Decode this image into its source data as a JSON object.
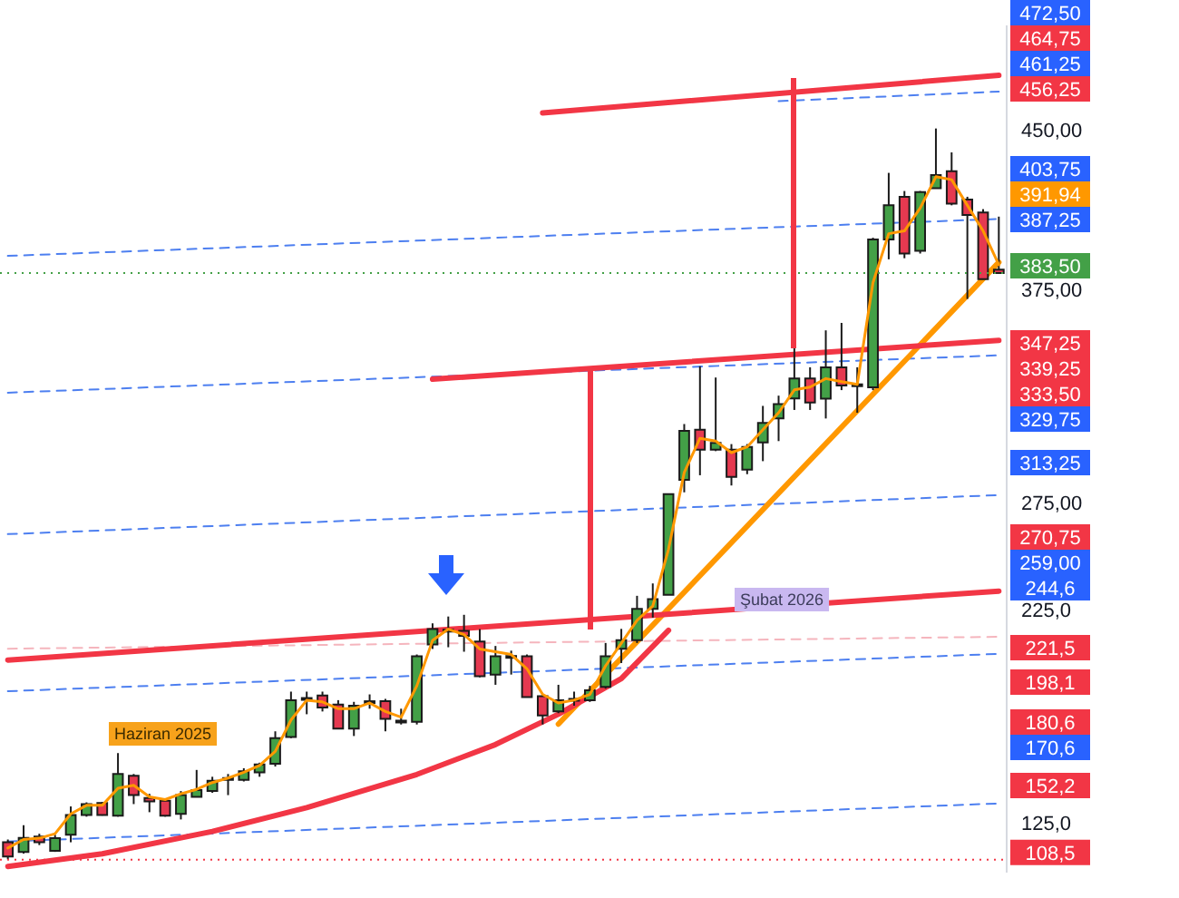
{
  "chart_data": {
    "type": "candlestick",
    "categories": [
      null,
      null,
      null,
      null,
      null,
      null,
      null,
      null,
      null,
      null,
      null,
      null,
      null,
      null,
      null,
      null,
      null,
      null,
      null,
      null,
      null,
      null,
      null,
      null,
      null,
      null,
      null,
      null,
      null,
      null,
      null,
      null,
      null,
      null,
      null,
      null,
      null,
      null,
      null,
      null,
      null,
      null,
      null,
      null,
      null,
      null,
      null,
      null,
      null,
      null,
      null,
      null,
      null,
      null,
      null,
      null,
      null,
      null,
      null,
      null,
      null,
      null,
      null,
      null
    ],
    "tick_labels": "y",
    "ohlc": [
      [
        116.7,
        118.0,
        108.7,
        110.0
      ],
      [
        112.2,
        124.7,
        111.4,
        118.8
      ],
      [
        119.4,
        120.7,
        115.4,
        116.7
      ],
      [
        112.7,
        120.2,
        112.2,
        118.6
      ],
      [
        120.2,
        133.5,
        116.7,
        129.5
      ],
      [
        129.5,
        135.4,
        128.7,
        134.6
      ],
      [
        135.1,
        135.6,
        129.2,
        129.5
      ],
      [
        129.2,
        158.5,
        128.7,
        148.7
      ],
      [
        147.9,
        148.7,
        134.6,
        138.8
      ],
      [
        137.5,
        139.4,
        130.8,
        135.9
      ],
      [
        136.2,
        136.7,
        128.7,
        129.2
      ],
      [
        130.0,
        140.7,
        127.4,
        138.8
      ],
      [
        138.0,
        150.6,
        138.0,
        141.2
      ],
      [
        140.7,
        147.4,
        139.9,
        145.5
      ],
      [
        146.6,
        148.7,
        138.8,
        146.8
      ],
      [
        146.0,
        151.4,
        145.2,
        150.0
      ],
      [
        149.5,
        154.0,
        147.4,
        153.2
      ],
      [
        153.5,
        168.7,
        152.2,
        165.5
      ],
      [
        166.0,
        187.3,
        165.5,
        183.3
      ],
      [
        184.1,
        187.3,
        176.7,
        184.3
      ],
      [
        185.5,
        187.3,
        178.0,
        179.9
      ],
      [
        181.2,
        183.3,
        170.0,
        170.0
      ],
      [
        170.0,
        182.5,
        166.5,
        180.7
      ],
      [
        182.8,
        186.0,
        179.3,
        182.6
      ],
      [
        182.8,
        183.9,
        168.7,
        174.5
      ],
      [
        173.7,
        179.3,
        171.9,
        173.5
      ],
      [
        173.2,
        204.7,
        171.9,
        203.9
      ],
      [
        209.4,
        219.3,
        207.3,
        216.6
      ],
      [
        216.3,
        222.5,
        208.1,
        216.0
      ],
      [
        215.8,
        223.3,
        206.0,
        213.4
      ],
      [
        210.8,
        216.6,
        194.0,
        194.5
      ],
      [
        195.3,
        208.7,
        190.5,
        203.9
      ],
      [
        204.0,
        206.5,
        195.3,
        203.8
      ],
      [
        203.9,
        204.7,
        184.7,
        184.7
      ],
      [
        185.2,
        186.0,
        171.9,
        176.1
      ],
      [
        178.0,
        190.5,
        177.2,
        183.3
      ],
      [
        183.9,
        187.3,
        180.7,
        183.7
      ],
      [
        183.3,
        190.0,
        182.5,
        187.9
      ],
      [
        189.5,
        210.1,
        188.7,
        203.9
      ],
      [
        207.4,
        216.7,
        200.7,
        211.4
      ],
      [
        211.4,
        232.2,
        210.1,
        226.1
      ],
      [
        226.1,
        238.0,
        222.0,
        230.6
      ],
      [
        232.7,
        279.9,
        232.7,
        279.9
      ],
      [
        286.5,
        312.7,
        280.7,
        309.5
      ],
      [
        310.0,
        339.8,
        288.7,
        300.7
      ],
      [
        300.7,
        334.5,
        300.0,
        303.9
      ],
      [
        300.7,
        303.3,
        283.9,
        287.9
      ],
      [
        291.3,
        303.3,
        289.2,
        302.0
      ],
      [
        304.1,
        321.2,
        295.3,
        313.2
      ],
      [
        315.3,
        326.0,
        304.7,
        322.0
      ],
      [
        324.7,
        350.0,
        319.3,
        334.0
      ],
      [
        334.0,
        339.3,
        319.3,
        322.8
      ],
      [
        324.6,
        356.6,
        315.3,
        339.3
      ],
      [
        339.3,
        360.1,
        328.6,
        330.8
      ],
      [
        331.3,
        339.3,
        318.0,
        331.1
      ],
      [
        329.9,
        400.0,
        328.6,
        399.2
      ],
      [
        399.2,
        430.4,
        389.9,
        415.2
      ],
      [
        419.2,
        421.9,
        390.4,
        392.6
      ],
      [
        393.9,
        421.9,
        392.6,
        421.4
      ],
      [
        423.2,
        451.2,
        423.2,
        429.4
      ],
      [
        431.2,
        440.0,
        415.2,
        416.0
      ],
      [
        417.9,
        419.2,
        371.3,
        410.7
      ],
      [
        411.8,
        413.4,
        380.6,
        380.6
      ],
      [
        385.1,
        409.9,
        383.2,
        383.5
      ]
    ],
    "colors": [
      "#e53950",
      "#43a047",
      "#e53950",
      "#43a047",
      "#43a047",
      "#43a047",
      "#e53950",
      "#43a047",
      "#e53950",
      "#e53950",
      "#e53950",
      "#43a047",
      "#43a047",
      "#43a047",
      "#43a047",
      "#43a047",
      "#43a047",
      "#43a047",
      "#43a047",
      "#43a047",
      "#e53950",
      "#e53950",
      "#43a047",
      "#e53950",
      "#e53950",
      "#e53950",
      "#43a047",
      "#43a047",
      "#e53950",
      "#e53950",
      "#e53950",
      "#43a047",
      "#e53950",
      "#e53950",
      "#e53950",
      "#43a047",
      "#e53950",
      "#43a047",
      "#43a047",
      "#43a047",
      "#43a047",
      "#43a047",
      "#43a047",
      "#43a047",
      "#e53950",
      "#43a047",
      "#e53950",
      "#43a047",
      "#43a047",
      "#43a047",
      "#43a047",
      "#e53950",
      "#43a047",
      "#e53950",
      "#e53950",
      "#43a047",
      "#43a047",
      "#e53950",
      "#43a047",
      "#43a047",
      "#e53950",
      "#e53950",
      "#e53950",
      "#e53950"
    ],
    "series": [
      {
        "type": "line",
        "color": "#ff9800",
        "values": [
          114,
          118,
          118.6,
          120.7,
          130,
          134,
          134,
          142,
          143.4,
          138,
          136.7,
          139.4,
          141.5,
          144.7,
          146.8,
          149.5,
          152.7,
          159.3,
          174,
          183.3,
          182.5,
          179.3,
          179.3,
          182,
          178,
          175.3,
          190,
          211.3,
          216.6,
          214,
          207.3,
          206,
          204.7,
          198,
          186,
          182,
          183.3,
          186,
          199.4,
          210,
          220.7,
          227.4,
          254,
          290,
          306,
          304.7,
          299.3,
          302,
          310,
          318,
          328.7,
          330,
          334,
          332.6,
          331.3,
          379,
          401.9,
          403.2,
          413.9,
          428.6,
          427.2,
          415.2,
          403.2,
          387.3
        ]
      },
      {
        "type": "line",
        "color": "#f23645",
        "values": [
          null,
          null,
          null,
          null,
          null,
          null,
          null,
          null,
          null,
          null,
          null,
          null,
          null,
          null,
          null,
          null,
          null,
          null,
          null,
          null,
          null,
          null,
          null,
          null,
          null,
          null,
          null,
          null,
          null,
          null,
          null,
          null,
          null,
          null,
          458.5,
          null,
          null,
          null,
          null,
          null,
          null,
          null,
          null,
          null,
          null,
          null,
          null,
          null,
          null,
          null,
          null,
          null,
          null,
          null,
          null,
          null,
          null,
          null,
          null,
          null,
          null,
          null,
          null,
          476.1
        ]
      },
      {
        "type": "line",
        "color": "#f23645",
        "values": [
          null,
          null,
          null,
          null,
          null,
          null,
          null,
          null,
          null,
          null,
          null,
          null,
          null,
          null,
          null,
          null,
          null,
          null,
          null,
          null,
          null,
          null,
          null,
          null,
          null,
          null,
          null,
          333.7,
          null,
          null,
          null,
          null,
          null,
          null,
          null,
          null,
          null,
          null,
          null,
          null,
          null,
          null,
          null,
          null,
          null,
          null,
          null,
          null,
          null,
          null,
          null,
          null,
          null,
          null,
          null,
          null,
          null,
          null,
          null,
          null,
          null,
          null,
          null,
          351.9
        ]
      },
      {
        "type": "line",
        "color": "#f23645",
        "values": [
          202.1,
          null,
          null,
          null,
          null,
          null,
          null,
          null,
          null,
          null,
          null,
          null,
          null,
          null,
          null,
          null,
          null,
          null,
          null,
          null,
          null,
          null,
          null,
          null,
          null,
          null,
          null,
          null,
          null,
          null,
          null,
          null,
          null,
          null,
          null,
          null,
          null,
          null,
          null,
          null,
          null,
          null,
          null,
          null,
          null,
          null,
          null,
          null,
          null,
          null,
          null,
          null,
          null,
          null,
          null,
          null,
          null,
          null,
          null,
          null,
          null,
          null,
          null,
          234.4
        ]
      },
      {
        "type": "line",
        "color": "#f23645",
        "values": [
          105.4,
          null,
          null,
          null,
          null,
          null,
          111.3,
          null,
          null,
          null,
          null,
          null,
          null,
          121.8,
          null,
          null,
          null,
          null,
          null,
          132.9,
          null,
          null,
          null,
          null,
          null,
          null,
          148.5,
          null,
          null,
          null,
          null,
          162.5,
          null,
          null,
          null,
          176.7,
          null,
          null,
          null,
          193.4,
          null,
          null,
          216,
          null,
          null,
          null,
          null,
          null,
          null,
          null,
          null,
          null,
          null,
          null,
          null,
          null,
          null,
          null,
          null,
          null,
          null,
          null,
          null,
          null
        ]
      },
      {
        "type": "line",
        "color": "#ff9800",
        "values": [
          null,
          null,
          null,
          null,
          null,
          null,
          null,
          null,
          null,
          null,
          null,
          null,
          null,
          null,
          null,
          null,
          null,
          null,
          null,
          null,
          null,
          null,
          null,
          null,
          null,
          null,
          null,
          null,
          null,
          null,
          null,
          null,
          null,
          null,
          null,
          172.1,
          null,
          null,
          null,
          null,
          null,
          null,
          null,
          null,
          null,
          null,
          null,
          null,
          null,
          null,
          null,
          null,
          null,
          null,
          null,
          null,
          null,
          null,
          null,
          null,
          null,
          null,
          null,
          388.5
        ]
      },
      {
        "type": "line",
        "color": "#4d7ff0",
        "line_style": "dashed",
        "values": [
          391.5,
          null,
          null,
          null,
          null,
          null,
          null,
          null,
          null,
          null,
          null,
          null,
          null,
          null,
          null,
          null,
          null,
          null,
          null,
          null,
          null,
          null,
          null,
          null,
          null,
          null,
          null,
          null,
          null,
          null,
          null,
          null,
          null,
          null,
          null,
          null,
          null,
          null,
          null,
          null,
          null,
          null,
          null,
          null,
          null,
          null,
          null,
          null,
          null,
          null,
          null,
          null,
          null,
          null,
          null,
          null,
          null,
          null,
          null,
          null,
          null,
          null,
          null,
          408.8
        ]
      },
      {
        "type": "line",
        "color": "#4d7ff0",
        "line_style": "dashed",
        "values": [
          null,
          null,
          null,
          null,
          null,
          null,
          null,
          null,
          null,
          null,
          null,
          null,
          null,
          null,
          null,
          null,
          null,
          null,
          null,
          null,
          null,
          null,
          null,
          null,
          null,
          null,
          null,
          null,
          null,
          null,
          null,
          null,
          null,
          null,
          null,
          null,
          null,
          null,
          null,
          null,
          null,
          null,
          null,
          null,
          null,
          null,
          null,
          null,
          null,
          464.0,
          null,
          null,
          null,
          null,
          null,
          null,
          null,
          null,
          null,
          null,
          null,
          null,
          null,
          468.5
        ]
      },
      {
        "type": "line",
        "color": "#4d7ff0",
        "line_style": "dashed",
        "values": [
          327.4,
          null,
          null,
          null,
          null,
          null,
          null,
          null,
          null,
          null,
          null,
          null,
          null,
          null,
          null,
          null,
          null,
          null,
          null,
          null,
          null,
          null,
          null,
          null,
          null,
          null,
          null,
          null,
          null,
          null,
          null,
          null,
          null,
          null,
          null,
          null,
          null,
          null,
          null,
          null,
          null,
          null,
          null,
          null,
          null,
          null,
          null,
          null,
          null,
          null,
          null,
          null,
          null,
          null,
          null,
          null,
          null,
          null,
          null,
          null,
          null,
          null,
          null,
          344.9
        ]
      },
      {
        "type": "line",
        "color": "#4d7ff0",
        "line_style": "dashed",
        "values": [
          261.1,
          null,
          null,
          null,
          null,
          null,
          null,
          null,
          null,
          null,
          null,
          null,
          null,
          null,
          null,
          null,
          null,
          null,
          null,
          null,
          null,
          null,
          null,
          null,
          null,
          null,
          null,
          null,
          null,
          null,
          null,
          null,
          null,
          null,
          null,
          null,
          null,
          null,
          null,
          null,
          null,
          null,
          null,
          null,
          null,
          null,
          null,
          null,
          null,
          null,
          null,
          null,
          null,
          null,
          null,
          null,
          null,
          null,
          null,
          null,
          null,
          null,
          null,
          279.4
        ]
      },
      {
        "type": "line",
        "color": "#4d7ff0",
        "line_style": "dashed",
        "values": [
          187.5,
          null,
          null,
          null,
          null,
          null,
          null,
          null,
          null,
          null,
          null,
          null,
          null,
          null,
          null,
          null,
          null,
          null,
          null,
          null,
          null,
          null,
          null,
          null,
          null,
          null,
          null,
          null,
          null,
          null,
          null,
          null,
          null,
          null,
          null,
          null,
          null,
          null,
          null,
          null,
          null,
          null,
          null,
          null,
          null,
          null,
          null,
          null,
          null,
          null,
          null,
          null,
          null,
          null,
          null,
          null,
          null,
          null,
          null,
          null,
          null,
          null,
          null,
          205.0
        ]
      },
      {
        "type": "line",
        "color": "#4d7ff0",
        "line_style": "dashed",
        "values": [
          117.1,
          null,
          null,
          null,
          null,
          null,
          null,
          null,
          null,
          null,
          null,
          null,
          null,
          null,
          null,
          null,
          null,
          null,
          null,
          null,
          null,
          null,
          null,
          null,
          null,
          null,
          null,
          null,
          null,
          null,
          null,
          null,
          null,
          null,
          null,
          null,
          null,
          null,
          null,
          null,
          null,
          null,
          null,
          null,
          null,
          null,
          null,
          null,
          null,
          null,
          null,
          null,
          null,
          null,
          null,
          null,
          null,
          null,
          null,
          null,
          null,
          null,
          null,
          134.9
        ]
      },
      {
        "type": "line",
        "color": "#f5b5bd",
        "line_style": "dashed",
        "values": [
          207.4,
          null,
          null,
          null,
          null,
          null,
          null,
          null,
          null,
          null,
          null,
          null,
          null,
          null,
          null,
          null,
          null,
          null,
          null,
          null,
          null,
          null,
          null,
          null,
          null,
          null,
          null,
          null,
          null,
          null,
          null,
          null,
          null,
          null,
          null,
          null,
          null,
          null,
          null,
          null,
          null,
          null,
          null,
          null,
          null,
          null,
          null,
          null,
          null,
          null,
          null,
          null,
          null,
          null,
          null,
          null,
          null,
          null,
          null,
          null,
          null,
          null,
          null,
          213.0
        ]
      }
    ],
    "ylim": [
      103,
      499
    ],
    "yticks": [
      {
        "value": 125,
        "label": "125,0"
      },
      {
        "value": 225,
        "label": "225,0"
      },
      {
        "value": 275,
        "label": "275,00"
      },
      {
        "value": 375,
        "label": "375,00"
      },
      {
        "value": 450,
        "label": "450,00"
      }
    ],
    "ref_lines": [
      {
        "axis": "y",
        "value": 383.5,
        "label": "383,50",
        "color": "#43a047",
        "line_style": "dotted"
      },
      {
        "axis": "y",
        "value": 108.5,
        "label": "108,5",
        "color": "#f23645",
        "line_style": "dotted"
      }
    ],
    "annotations": [
      "472,50",
      "464,75",
      "461,25",
      "456,25",
      "403,75",
      "391,94",
      "387,25",
      "347,25",
      "339,25",
      "333,50",
      "329,75",
      "313,25",
      "270,75",
      "259,00",
      "244,6",
      "221,5",
      "198,1",
      "180,6",
      "170,6",
      "152,2",
      "Haziran 2025",
      "Şubat 2026"
    ],
    "grid": false,
    "legend": false
  }
}
